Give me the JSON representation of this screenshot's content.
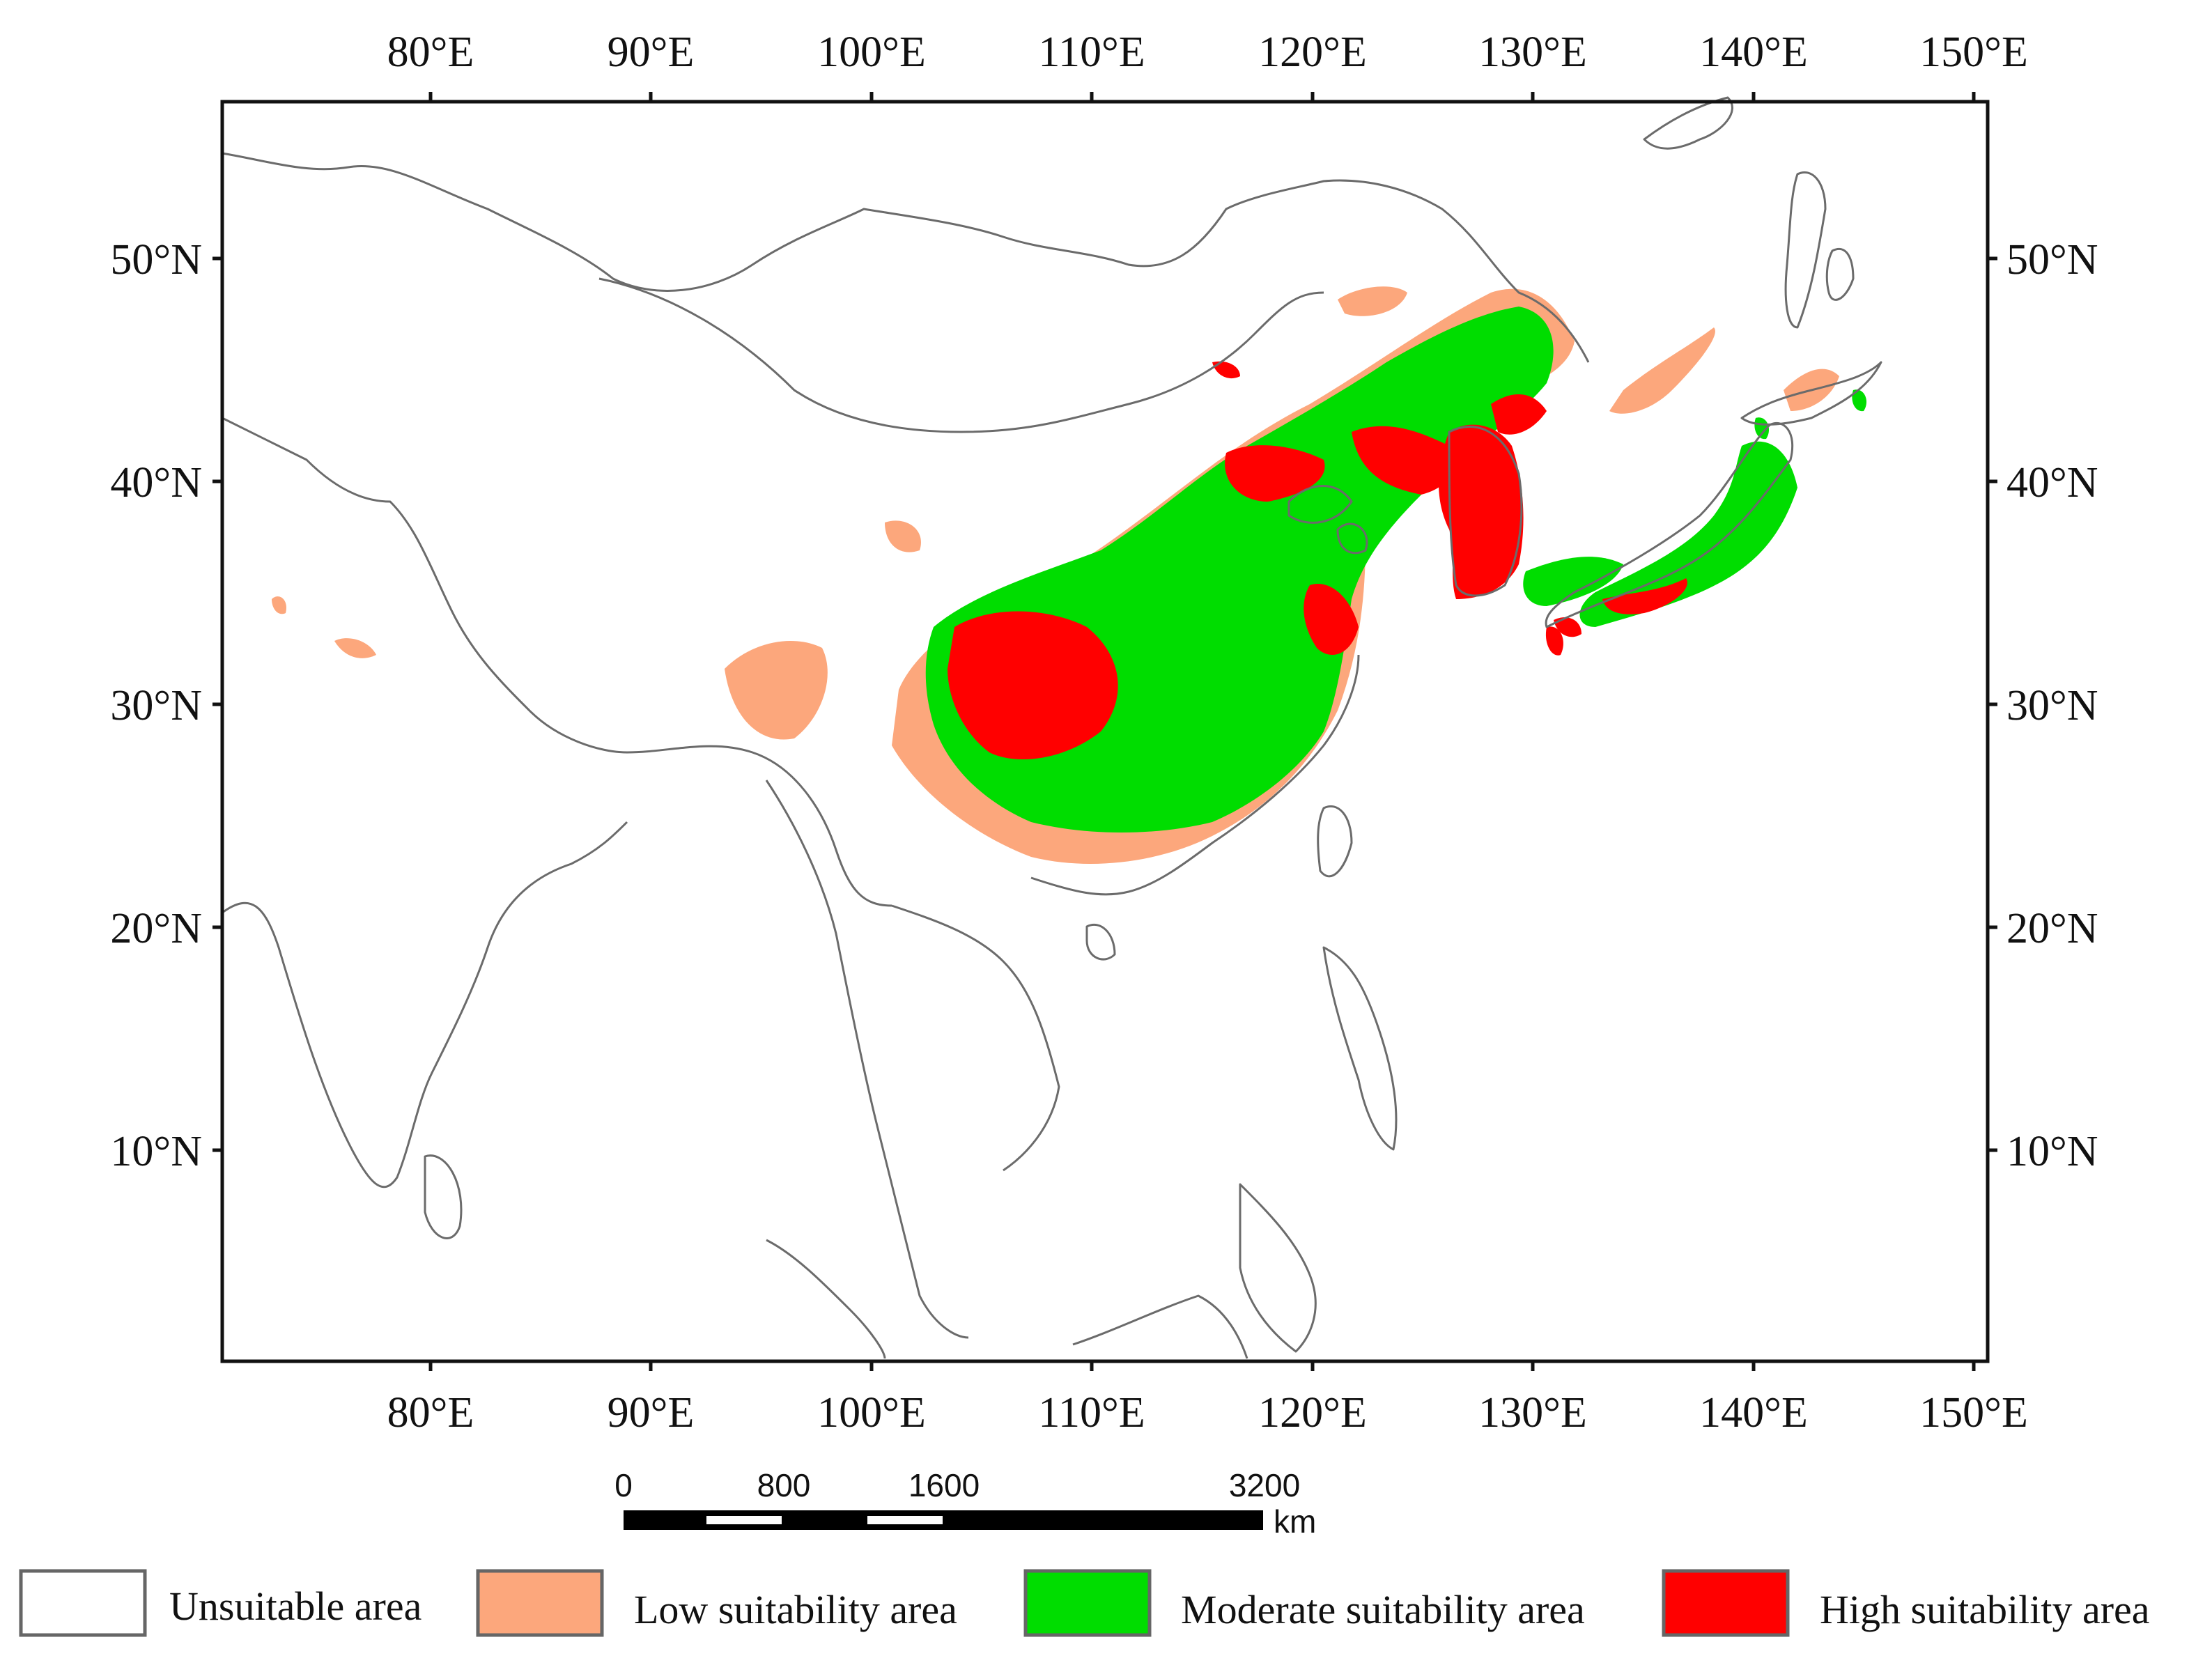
{
  "map": {
    "lon_labels": [
      "80°E",
      "90°E",
      "100°E",
      "110°E",
      "120°E",
      "130°E",
      "140°E",
      "150°E"
    ],
    "lat_labels": [
      "50°N",
      "40°N",
      "30°N",
      "20°N",
      "10°N"
    ]
  },
  "scale_bar": {
    "ticks": [
      "0",
      "800",
      "1600",
      "3200"
    ],
    "unit": "km"
  },
  "legend": {
    "items": [
      {
        "label": "Unsuitable area",
        "color": "#ffffff"
      },
      {
        "label": "Low suitability area",
        "color": "#fca77c"
      },
      {
        "label": "Moderate suitability area",
        "color": "#00dd00"
      },
      {
        "label": "High suitability area",
        "color": "#ff0000"
      }
    ]
  }
}
